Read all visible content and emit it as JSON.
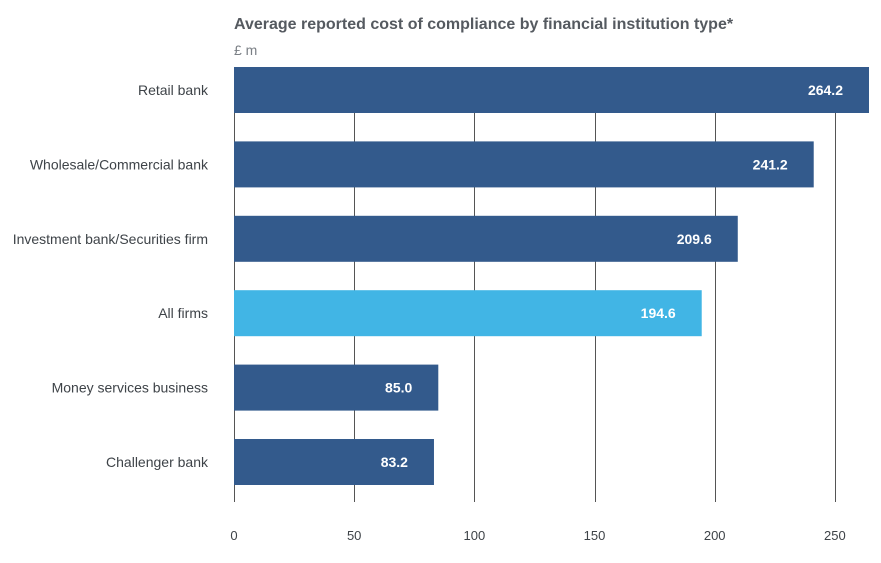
{
  "chart_data": {
    "type": "bar",
    "orientation": "horizontal",
    "title": "Average reported cost of compliance by financial institution type*",
    "unit_label": "£ m",
    "categories": [
      "Retail bank",
      "Wholesale/Commercial bank",
      "Investment bank/Securities firm",
      "All firms",
      "Money services business",
      "Challenger bank"
    ],
    "values": [
      264.2,
      241.2,
      209.6,
      194.6,
      85.0,
      83.2
    ],
    "value_labels": [
      "264.2",
      "241.2",
      "209.6",
      "194.6",
      "85.0",
      "83.2"
    ],
    "highlight_category": "All firms",
    "x_ticks": [
      0,
      50,
      100,
      150,
      200,
      250
    ],
    "xlim": [
      0,
      264.2
    ],
    "grid": true,
    "legend": "none"
  },
  "colors": {
    "bar": "#335a8c",
    "highlight": "#41b5e5",
    "grid": "#555555",
    "title": "#555a60",
    "unit": "#7a7f85",
    "text": "#3e4348"
  }
}
